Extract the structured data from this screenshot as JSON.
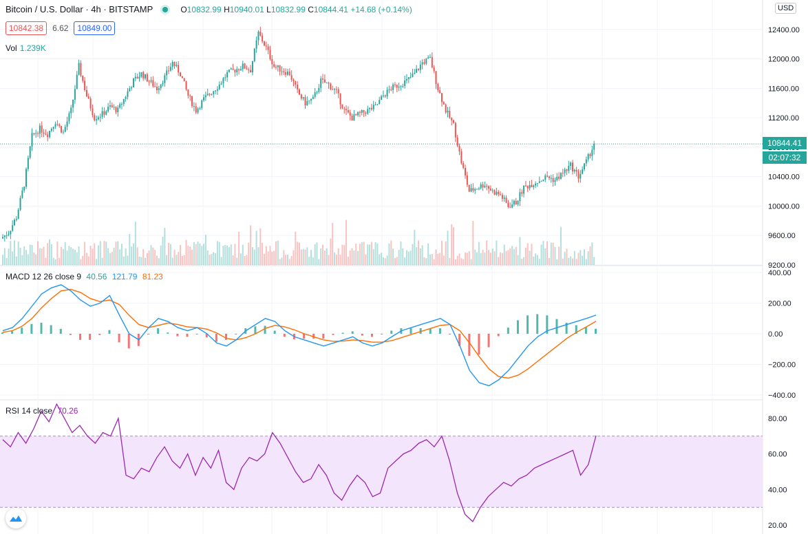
{
  "header": {
    "symbol": "Bitcoin / U.S. Dollar · 4h · BITSTAMP",
    "open_label": "O",
    "open": "10832.99",
    "high_label": "H",
    "high": "10940.01",
    "low_label": "L",
    "low": "10832.99",
    "close_label": "C",
    "close": "10844.41",
    "change": "+14.68 (+0.14%)"
  },
  "trade": {
    "sell": "10842.38",
    "spread": "6.62",
    "buy": "10849.00"
  },
  "volume": {
    "label": "Vol",
    "value": "1.239K"
  },
  "macd_legend": {
    "label": "MACD 12 26 close 9",
    "hist": "40.56",
    "macd": "121.79",
    "signal": "81.23"
  },
  "rsi_legend": {
    "label": "RSI 14 close",
    "value": "70.26"
  },
  "currency": "USD",
  "price_tag": "10844.41",
  "countdown": "02:07:32",
  "colors": {
    "up": "#26a69a",
    "down": "#ef5350",
    "macd": "#2196f3",
    "signal": "#ff6d00",
    "rsi": "#9c27b0",
    "rsi_band": "#f3e5fb"
  },
  "chart_data": [
    {
      "type": "candlestick",
      "title": "Bitcoin / U.S. Dollar · 4h · BITSTAMP",
      "ylim": [
        9200,
        12800
      ],
      "y_ticks": [
        "9200.00",
        "9600.00",
        "10000.00",
        "10400.00",
        "10800.00",
        "11200.00",
        "11600.00",
        "12000.00",
        "12400.00"
      ],
      "last_price": 10844.41,
      "series_close": [
        9560,
        9640,
        9850,
        10300,
        10950,
        11050,
        10980,
        11150,
        11000,
        11300,
        11900,
        11500,
        11200,
        11250,
        11350,
        11300,
        11500,
        11700,
        11800,
        11700,
        11600,
        11750,
        11950,
        11800,
        11500,
        11300,
        11450,
        11550,
        11650,
        11800,
        11850,
        11900,
        11850,
        12350,
        12150,
        11900,
        11850,
        11800,
        11550,
        11400,
        11450,
        11700,
        11650,
        11550,
        11300,
        11200,
        11250,
        11300,
        11350,
        11500,
        11600,
        11650,
        11700,
        11800,
        11950,
        12000,
        11600,
        11300,
        11100,
        10600,
        10200,
        10250,
        10300,
        10200,
        10150,
        10000,
        10050,
        10250,
        10300,
        10350,
        10400,
        10350,
        10450,
        10550,
        10400,
        10600,
        10844
      ]
    },
    {
      "type": "bar",
      "title": "Vol",
      "last_value": "1.239K"
    },
    {
      "type": "line",
      "title": "MACD 12 26 close 9",
      "ylim": [
        -400,
        400
      ],
      "y_ticks": [
        "400.00",
        "200.00",
        "0.00",
        "−200.00",
        "−400.00"
      ],
      "series": [
        {
          "name": "MACD",
          "last": 121.79,
          "values": [
            20,
            40,
            100,
            180,
            260,
            300,
            320,
            280,
            220,
            180,
            200,
            250,
            120,
            0,
            -40,
            40,
            100,
            80,
            40,
            20,
            40,
            0,
            -60,
            -80,
            -40,
            20,
            60,
            100,
            80,
            20,
            -20,
            -40,
            -60,
            -80,
            -60,
            -40,
            -20,
            -60,
            -80,
            -60,
            -20,
            20,
            40,
            60,
            80,
            100,
            60,
            -80,
            -240,
            -320,
            -340,
            -300,
            -240,
            -160,
            -80,
            -20,
            20,
            40,
            60,
            80,
            100,
            121.79
          ]
        },
        {
          "name": "Signal",
          "last": 81.23,
          "values": [
            10,
            20,
            50,
            100,
            170,
            230,
            280,
            290,
            270,
            230,
            210,
            220,
            190,
            120,
            60,
            40,
            55,
            70,
            60,
            45,
            40,
            30,
            5,
            -30,
            -40,
            -25,
            0,
            35,
            55,
            45,
            25,
            0,
            -20,
            -40,
            -50,
            -48,
            -40,
            -45,
            -55,
            -55,
            -45,
            -25,
            -5,
            15,
            35,
            55,
            60,
            20,
            -60,
            -150,
            -230,
            -280,
            -290,
            -270,
            -230,
            -180,
            -130,
            -80,
            -30,
            10,
            45,
            81.23
          ]
        },
        {
          "name": "Histogram",
          "last": 40.56
        }
      ]
    },
    {
      "type": "line",
      "title": "RSI 14 close",
      "ylim": [
        15,
        90
      ],
      "y_ticks": [
        "80.00",
        "60.00",
        "40.00",
        "20.00"
      ],
      "bands": [
        30,
        70
      ],
      "series": [
        {
          "name": "RSI",
          "last": 70.26,
          "values": [
            68,
            64,
            72,
            66,
            74,
            84,
            78,
            88,
            80,
            72,
            76,
            70,
            66,
            72,
            70,
            80,
            48,
            46,
            52,
            50,
            58,
            64,
            56,
            52,
            60,
            48,
            58,
            52,
            62,
            44,
            40,
            52,
            58,
            56,
            60,
            72,
            66,
            58,
            50,
            44,
            46,
            54,
            48,
            38,
            34,
            42,
            48,
            44,
            36,
            38,
            52,
            56,
            60,
            62,
            66,
            68,
            64,
            70,
            56,
            38,
            26,
            22,
            30,
            36,
            40,
            44,
            42,
            46,
            48,
            52,
            54,
            56,
            58,
            60,
            62,
            48,
            54,
            70.26
          ]
        }
      ]
    }
  ]
}
